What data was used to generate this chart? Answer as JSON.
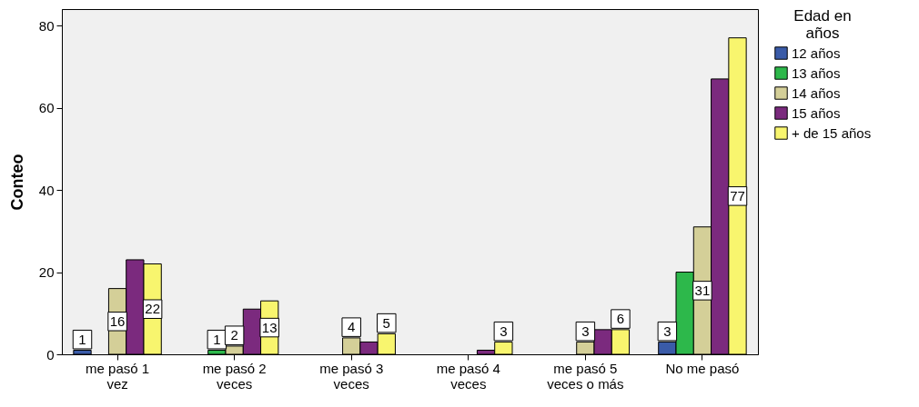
{
  "chart_data": {
    "type": "bar",
    "ylabel": "Conteo",
    "legend_title": "Edad en años",
    "legend": "right",
    "categories": [
      "me pasó 1 vez",
      "me pasó 2 veces",
      "me pasó 3 veces",
      "me pasó 4 veces",
      "me pasó 5 veces o más",
      "No me pasó"
    ],
    "series": [
      {
        "name": "12 años",
        "color": "#3a5ba8",
        "values": [
          1,
          0,
          0,
          0,
          0,
          3
        ],
        "value_labels": [
          "1",
          null,
          null,
          null,
          null,
          "3"
        ]
      },
      {
        "name": "13 años",
        "color": "#2db84b",
        "values": [
          0,
          1,
          0,
          0,
          0,
          20
        ],
        "value_labels": [
          null,
          "1",
          null,
          null,
          null,
          null
        ]
      },
      {
        "name": "14 años",
        "color": "#d4cf98",
        "values": [
          16,
          2,
          4,
          0,
          3,
          31
        ],
        "value_labels": [
          "16",
          "2",
          "4",
          null,
          "3",
          "31"
        ]
      },
      {
        "name": "15 años",
        "color": "#7b2a7e",
        "values": [
          23,
          11,
          3,
          1,
          6,
          67
        ],
        "value_labels": [
          null,
          null,
          null,
          null,
          null,
          null
        ]
      },
      {
        "name": "+ de 15 años",
        "color": "#f8f56e",
        "values": [
          22,
          13,
          5,
          3,
          6,
          77
        ],
        "value_labels": [
          "22",
          "13",
          "5",
          "3",
          "6",
          "77"
        ]
      }
    ],
    "ylim": [
      0,
      84
    ],
    "yticks": [
      0,
      20,
      40,
      60,
      80
    ],
    "grid": false
  }
}
